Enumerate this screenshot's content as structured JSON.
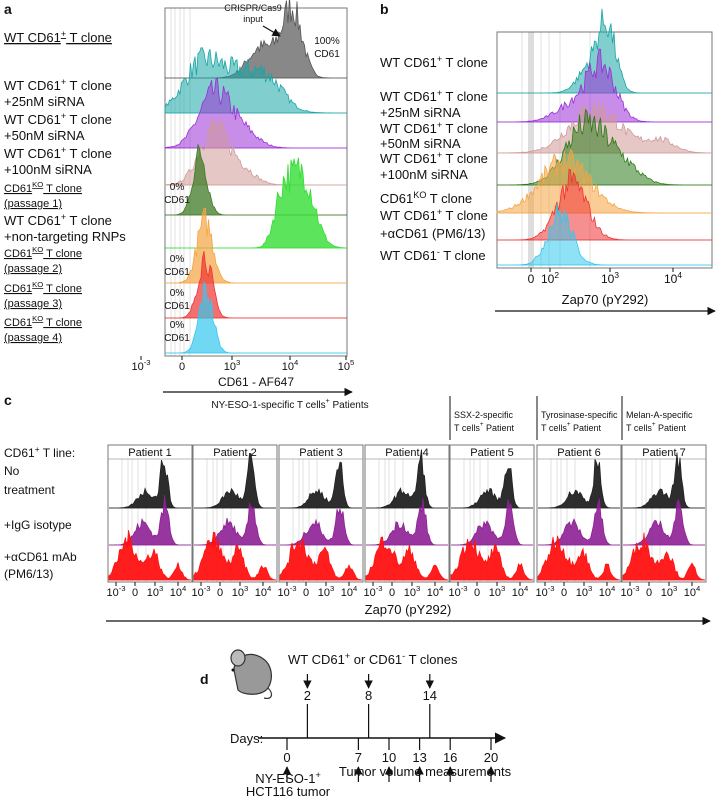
{
  "panel_a": {
    "label": "a",
    "rows": [
      [
        [
          "WT CD61",
          "+",
          " T clone"
        ]
      ],
      [
        [
          "WT CD61",
          "+",
          " T clone"
        ],
        [
          "+25nM siRNA"
        ]
      ],
      [
        [
          "WT CD61",
          "+",
          " T clone"
        ],
        [
          "+50nM siRNA"
        ]
      ],
      [
        [
          "WT CD61",
          "+",
          " T clone"
        ],
        [
          "+100nM siRNA"
        ]
      ],
      [
        [
          "CD61",
          "KO",
          " T clone"
        ],
        [
          "(passage 1)"
        ]
      ],
      [
        [
          "WT CD61",
          "+",
          " T clone"
        ],
        [
          "+non-targeting RNPs"
        ]
      ],
      [
        [
          "CD61",
          "KO",
          " T clone"
        ],
        [
          "(passage 2)"
        ]
      ],
      [
        [
          "CD61",
          "KO",
          " T clone"
        ],
        [
          "(passage 3)"
        ]
      ],
      [
        [
          "CD61",
          "KO",
          " T clone"
        ],
        [
          "(passage 4)"
        ]
      ]
    ],
    "input_label": [
      "CRISPR/Cas9",
      "input"
    ],
    "full_label": [
      "100%",
      "CD61"
    ],
    "zero_labels": [
      [
        "0%",
        "CD61"
      ],
      [
        "0%",
        "CD61"
      ],
      [
        "0%",
        "CD61"
      ],
      [
        "0%",
        "CD61"
      ]
    ],
    "xticks": [
      [
        "10",
        "-3"
      ],
      [
        "0"
      ],
      [
        "10",
        "3"
      ],
      [
        "10",
        "4"
      ],
      [
        "10",
        "5"
      ]
    ],
    "xlabel": "CD61 - AF647"
  },
  "panel_b": {
    "label": "b",
    "rows": [
      [
        [
          "WT CD61",
          "+",
          " T clone"
        ]
      ],
      [
        [
          "WT CD61",
          "+",
          " T clone"
        ],
        [
          "+25nM siRNA"
        ]
      ],
      [
        [
          "WT CD61",
          "+",
          " T clone"
        ],
        [
          "+50nM siRNA"
        ]
      ],
      [
        [
          "WT CD61",
          "+",
          " T clone"
        ],
        [
          "+100nM siRNA"
        ]
      ],
      [
        [
          "CD61",
          "KO",
          " T clone"
        ]
      ],
      [
        [
          "WT CD61",
          "+",
          " T clone"
        ],
        [
          "+αCD61 (PM6/13)"
        ]
      ],
      [
        [
          "WT CD61",
          "-",
          " T clone"
        ]
      ]
    ],
    "xticks": [
      [
        "0"
      ],
      [
        "10",
        "2"
      ],
      [
        "10",
        "3"
      ],
      [
        "10",
        "4"
      ]
    ],
    "xlabel": "Zap70 (pY292)"
  },
  "panel_c": {
    "label": "c",
    "header": [
      "NY-ESO-1-specific T cells",
      "+",
      " Patients"
    ],
    "groups": [
      [
        [
          "SSX-2-specific"
        ],
        [
          "T cells",
          "+",
          " Patient"
        ]
      ],
      [
        [
          "Tyrosinase-specific"
        ],
        [
          "T cells",
          "+",
          " Patient"
        ]
      ],
      [
        [
          "Melan-A-specific"
        ],
        [
          "T cells",
          "+",
          " Patient"
        ]
      ]
    ],
    "line_label": [
      "CD61",
      "+",
      " T line:"
    ],
    "patients": [
      "Patient 1",
      "Patient 2",
      "Patient 3",
      "Patient 4",
      "Patient 5",
      "Patient 6",
      "Patient 7"
    ],
    "rows": [
      [
        [
          "No"
        ],
        [
          "treatment"
        ]
      ],
      [
        [
          "+IgG isotype"
        ]
      ],
      [
        [
          "+αCD61 mAb"
        ],
        [
          "(PM6/13)"
        ]
      ]
    ],
    "xticks": [
      [
        "10",
        "-3"
      ],
      [
        "0"
      ],
      [
        "10",
        "3"
      ],
      [
        "10",
        "4"
      ]
    ],
    "xlabel": "Zap70 (pY292)"
  },
  "panel_d": {
    "label": "d",
    "injection_label": [
      "WT CD61",
      "+",
      " or CD61",
      "-",
      " T clones"
    ],
    "injection_days": [
      2,
      8,
      14
    ],
    "days_label": "Days:",
    "tumor_day": 0,
    "measurement_days": [
      7,
      10,
      13,
      16,
      20
    ],
    "tumor_label": [
      [
        "NY-ESO-1",
        "+"
      ],
      [
        "HCT116 tumor"
      ]
    ],
    "measurement_label": "Tumor volume measurements"
  }
}
